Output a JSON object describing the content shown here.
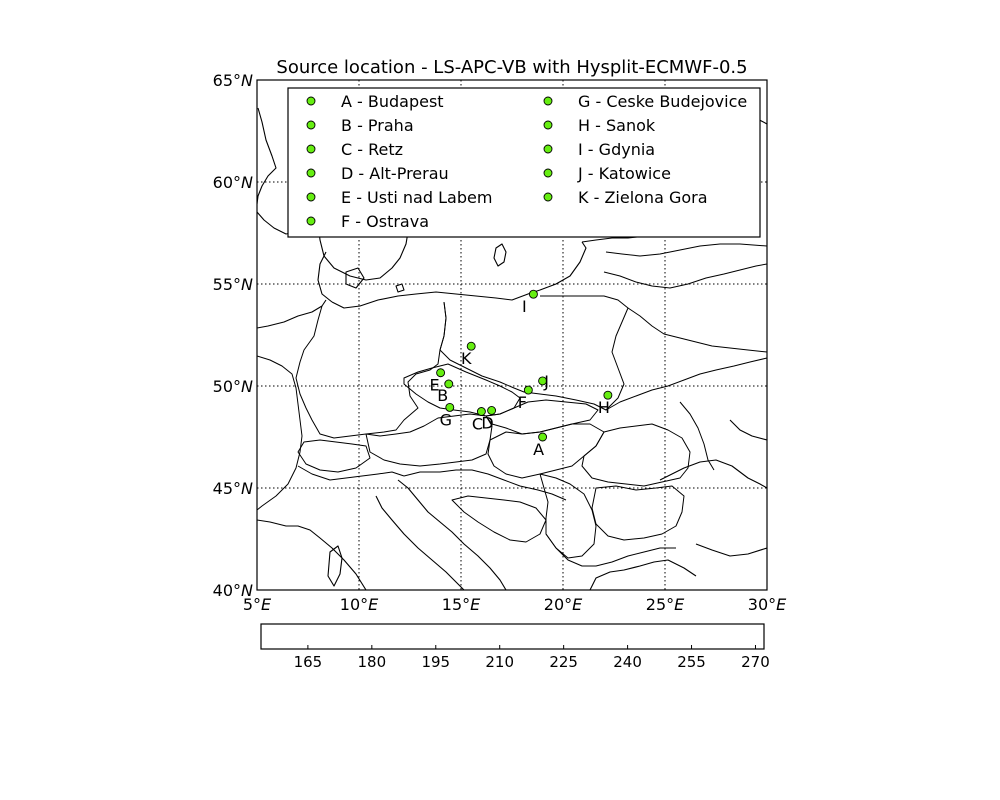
{
  "map": {
    "title": "Source location - LS-APC-VB with Hysplit-ECMWF-0.5",
    "lon_range": [
      5,
      30
    ],
    "lat_range": [
      40,
      65
    ],
    "lon_ticks": [
      {
        "value": 5,
        "num": "5°",
        "hem": "E"
      },
      {
        "value": 10,
        "num": "10°",
        "hem": "E"
      },
      {
        "value": 15,
        "num": "15°",
        "hem": "E"
      },
      {
        "value": 20,
        "num": "20°",
        "hem": "E"
      },
      {
        "value": 25,
        "num": "25°",
        "hem": "E"
      },
      {
        "value": 30,
        "num": "30°",
        "hem": "E"
      }
    ],
    "lat_ticks": [
      {
        "value": 40,
        "num": "40°",
        "hem": "N"
      },
      {
        "value": 45,
        "num": "45°",
        "hem": "N"
      },
      {
        "value": 50,
        "num": "50°",
        "hem": "N"
      },
      {
        "value": 55,
        "num": "55°",
        "hem": "N"
      },
      {
        "value": 60,
        "num": "60°",
        "hem": "N"
      },
      {
        "value": 65,
        "num": "65°",
        "hem": "N"
      }
    ],
    "grid": "dotted",
    "marker_color": "#66ee11",
    "legend_location": "upper-center",
    "sites": [
      {
        "id": "A",
        "name": "A - Budapest",
        "lon": 19.0,
        "lat": 47.5
      },
      {
        "id": "B",
        "name": "B - Praha",
        "lon": 14.4,
        "lat": 50.1
      },
      {
        "id": "C",
        "name": "C - Retz",
        "lon": 16.0,
        "lat": 48.75
      },
      {
        "id": "D",
        "name": "D - Alt-Prerau",
        "lon": 16.5,
        "lat": 48.8
      },
      {
        "id": "E",
        "name": "E - Usti nad Labem",
        "lon": 14.0,
        "lat": 50.65
      },
      {
        "id": "F",
        "name": "F - Ostrava",
        "lon": 18.3,
        "lat": 49.8
      },
      {
        "id": "G",
        "name": "G - Ceske Budejovice",
        "lon": 14.45,
        "lat": 48.95
      },
      {
        "id": "H",
        "name": "H - Sanok",
        "lon": 22.2,
        "lat": 49.55
      },
      {
        "id": "I",
        "name": "I - Gdynia",
        "lon": 18.55,
        "lat": 54.5
      },
      {
        "id": "J",
        "name": "J - Katowice",
        "lon": 19.0,
        "lat": 50.25
      },
      {
        "id": "K",
        "name": "K - Zielona Gora",
        "lon": 15.5,
        "lat": 51.95
      }
    ]
  },
  "colorbar": {
    "ticks": [
      "165",
      "180",
      "195",
      "210",
      "225",
      "240",
      "255",
      "270"
    ],
    "values": [
      165,
      180,
      195,
      210,
      225,
      240,
      255,
      270
    ],
    "range": [
      154,
      272
    ]
  }
}
